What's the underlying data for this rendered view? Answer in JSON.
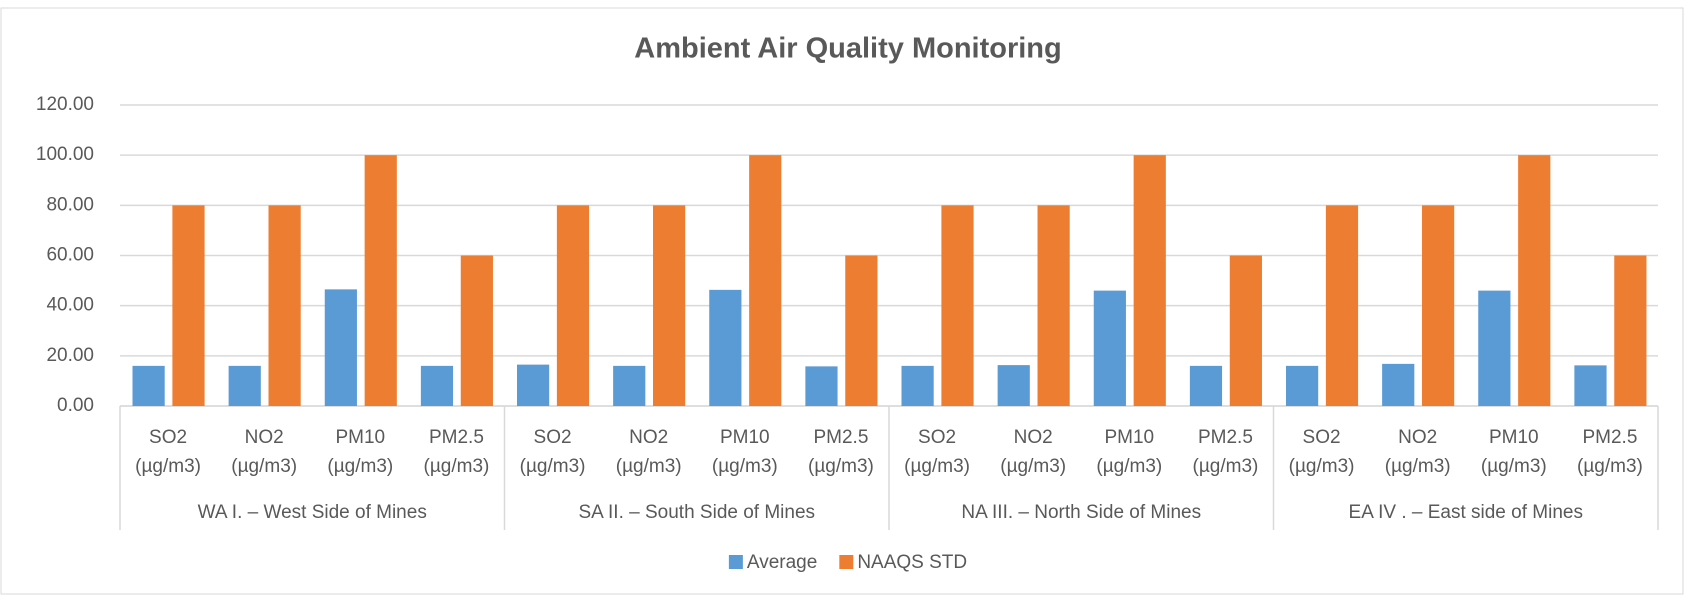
{
  "chart_data": {
    "type": "bar",
    "title": "Ambient Air Quality Monitoring",
    "groups": [
      {
        "name": "WA I. – West Side of Mines",
        "categories": [
          [
            "SO2",
            "(µg/m3)"
          ],
          [
            "NO2",
            "(µg/m3)"
          ],
          [
            "PM10",
            "(µg/m3)"
          ],
          [
            "PM2.5",
            "(µg/m3)"
          ]
        ]
      },
      {
        "name": "SA II. –  South  Side of Mines",
        "categories": [
          [
            "SO2",
            "(µg/m3)"
          ],
          [
            "NO2",
            "(µg/m3)"
          ],
          [
            "PM10",
            "(µg/m3)"
          ],
          [
            "PM2.5",
            "(µg/m3)"
          ]
        ]
      },
      {
        "name": "NA III. – North  Side of Mines",
        "categories": [
          [
            "SO2",
            "(µg/m3)"
          ],
          [
            "NO2",
            "(µg/m3)"
          ],
          [
            "PM10",
            "(µg/m3)"
          ],
          [
            "PM2.5",
            "(µg/m3)"
          ]
        ]
      },
      {
        "name": "EA IV . – East side of Mines",
        "categories": [
          [
            "SO2",
            "(µg/m3)"
          ],
          [
            "NO2",
            "(µg/m3)"
          ],
          [
            "PM10",
            "(µg/m3)"
          ],
          [
            "PM2.5",
            "(µg/m3)"
          ]
        ]
      }
    ],
    "series": [
      {
        "name": "Average",
        "color": "#5b9bd5",
        "values": [
          16.0,
          16.0,
          46.5,
          16.0,
          16.5,
          16.0,
          46.3,
          15.8,
          16.0,
          16.3,
          46.0,
          16.0,
          16.0,
          16.8,
          46.0,
          16.2
        ]
      },
      {
        "name": "NAAQS  STD",
        "color": "#ed7d31",
        "values": [
          80,
          80,
          100,
          60,
          80,
          80,
          100,
          60,
          80,
          80,
          100,
          60,
          80,
          80,
          100,
          60
        ]
      }
    ],
    "ylim": [
      0,
      120
    ],
    "yticks": [
      {
        "value": 0,
        "label": "0.00"
      },
      {
        "value": 20,
        "label": "20.00"
      },
      {
        "value": 40,
        "label": "40.00"
      },
      {
        "value": 60,
        "label": "60.00"
      },
      {
        "value": 80,
        "label": "80.00"
      },
      {
        "value": 100,
        "label": "100.00"
      },
      {
        "value": 120,
        "label": "120.00"
      }
    ],
    "grid": true,
    "legend": "bottom"
  }
}
